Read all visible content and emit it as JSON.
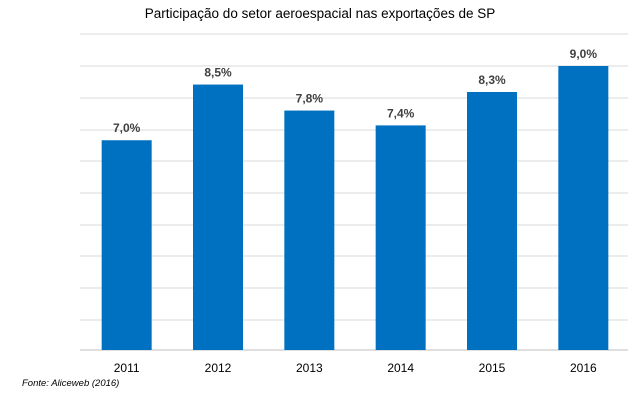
{
  "title": "Participação do setor aeroespacial nas exportações de SP",
  "source": "Fonte: Aliceweb (2016)",
  "chart_data": {
    "type": "bar",
    "title": "Participação do setor aeroespacial nas exportações de SP",
    "categories": [
      "2011",
      "2012",
      "2013",
      "2014",
      "2015",
      "2016"
    ],
    "values": [
      7.0,
      8.5,
      7.8,
      7.4,
      8.3,
      9.0
    ],
    "value_labels": [
      "7,0%",
      "8,5%",
      "7,8%",
      "7,4%",
      "8,3%",
      "9,0%"
    ],
    "unit": "%",
    "bar_color": "#0070C0",
    "gridline_color": "#D9D9D9",
    "grid": true,
    "legend": "none"
  }
}
